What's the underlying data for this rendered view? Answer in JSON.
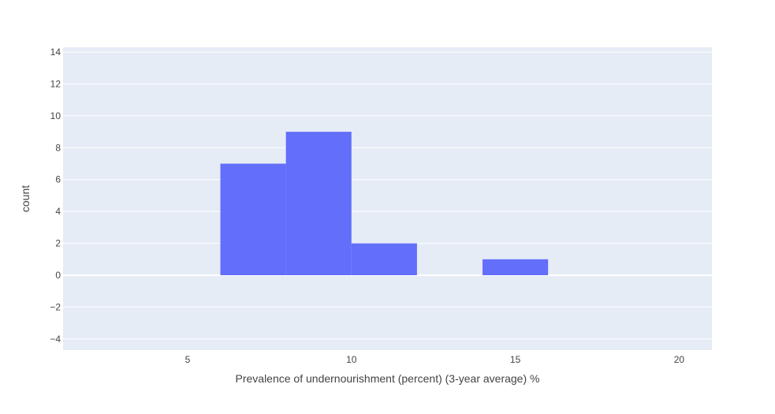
{
  "chart_data": {
    "type": "bar",
    "subtype": "histogram",
    "xlabel": "Prevalence of undernourishment (percent) (3-year average) %",
    "ylabel": "count",
    "xlim": [
      1.2,
      21
    ],
    "ylim": [
      -4.7,
      14.3
    ],
    "xticks": [
      5,
      10,
      15,
      20
    ],
    "yticks": [
      -4,
      -2,
      0,
      2,
      4,
      6,
      8,
      10,
      12,
      14
    ],
    "bins": [
      {
        "x0": 6,
        "x1": 8,
        "count": 7
      },
      {
        "x0": 8,
        "x1": 10,
        "count": 9
      },
      {
        "x0": 10,
        "x1": 12,
        "count": 2
      },
      {
        "x0": 14,
        "x1": 16,
        "count": 1
      }
    ],
    "colors": {
      "bar": "#636efa",
      "plot_background": "#e5ecf6",
      "grid": "#ffffff"
    },
    "grid": true
  }
}
